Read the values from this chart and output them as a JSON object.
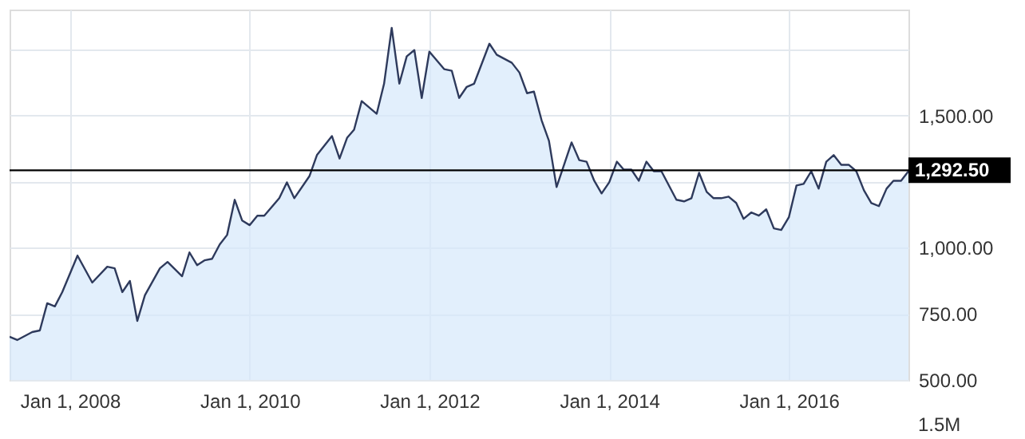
{
  "chart_data": {
    "type": "area",
    "x": [
      "2007-05",
      "2007-06",
      "2007-08",
      "2007-09",
      "2007-10",
      "2007-11",
      "2007-12",
      "2008-02",
      "2008-04",
      "2008-06",
      "2008-07",
      "2008-08",
      "2008-09",
      "2008-10",
      "2008-11",
      "2009-01",
      "2009-02",
      "2009-04",
      "2009-05",
      "2009-06",
      "2009-07",
      "2009-08",
      "2009-09",
      "2009-10",
      "2009-11",
      "2009-12",
      "2010-01",
      "2010-02",
      "2010-03",
      "2010-05",
      "2010-06",
      "2010-07",
      "2010-09",
      "2010-10",
      "2010-12",
      "2011-01",
      "2011-02",
      "2011-03",
      "2011-04",
      "2011-06",
      "2011-07",
      "2011-08",
      "2011-09",
      "2011-10",
      "2011-11",
      "2011-12",
      "2012-01",
      "2012-03",
      "2012-04",
      "2012-05",
      "2012-06",
      "2012-07",
      "2012-09",
      "2012-10",
      "2012-12",
      "2013-01",
      "2013-02",
      "2013-03",
      "2013-04",
      "2013-05",
      "2013-06",
      "2013-08",
      "2013-09",
      "2013-10",
      "2013-11",
      "2013-12",
      "2014-01",
      "2014-02",
      "2014-03",
      "2014-04",
      "2014-05",
      "2014-06",
      "2014-07",
      "2014-08",
      "2014-10",
      "2014-11",
      "2014-12",
      "2015-01",
      "2015-02",
      "2015-03",
      "2015-04",
      "2015-05",
      "2015-06",
      "2015-07",
      "2015-08",
      "2015-09",
      "2015-10",
      "2015-11",
      "2015-12",
      "2016-01",
      "2016-02",
      "2016-03",
      "2016-04",
      "2016-05",
      "2016-06",
      "2016-07",
      "2016-08",
      "2016-09",
      "2016-10",
      "2016-11",
      "2016-12",
      "2017-01",
      "2017-02",
      "2017-03",
      "2017-04",
      "2017-05"
    ],
    "series": [
      {
        "color": "#d6e8fb",
        "values": [
          663,
          651,
          681,
          687,
          790,
          778,
          832,
          970,
          868,
          928,
          922,
          832,
          874,
          723,
          820,
          922,
          946,
          892,
          982,
          934,
          952,
          958,
          1012,
          1048,
          1181,
          1103,
          1085,
          1121,
          1121,
          1187,
          1247,
          1187,
          1271,
          1350,
          1422,
          1337,
          1416,
          1446,
          1554,
          1506,
          1620,
          1831,
          1620,
          1723,
          1747,
          1566,
          1741,
          1675,
          1669,
          1566,
          1608,
          1620,
          1771,
          1729,
          1699,
          1662,
          1584,
          1590,
          1482,
          1404,
          1229,
          1398,
          1331,
          1325,
          1253,
          1205,
          1247,
          1325,
          1295,
          1295,
          1253,
          1325,
          1289,
          1289,
          1181,
          1175,
          1187,
          1283,
          1211,
          1187,
          1187,
          1193,
          1169,
          1109,
          1133,
          1121,
          1145,
          1073,
          1067,
          1115,
          1235,
          1241,
          1289,
          1223,
          1325,
          1350,
          1313,
          1313,
          1289,
          1217,
          1169,
          1157,
          1223,
          1253,
          1253,
          1289
        ]
      }
    ],
    "xlim": [
      "2007-05",
      "2017-05"
    ],
    "xticks": [
      {
        "value": "2008-01-01",
        "label": "Jan 1, 2008"
      },
      {
        "value": "2010-01-01",
        "label": "Jan 1, 2010"
      },
      {
        "value": "2012-01-01",
        "label": "Jan 1, 2012"
      },
      {
        "value": "2014-01-01",
        "label": "Jan 1, 2014"
      },
      {
        "value": "2016-01-01",
        "label": "Jan 1, 2016"
      }
    ],
    "ylim": [
      500,
      1900
    ],
    "yticks": [
      {
        "value": 500,
        "label": "500.00"
      },
      {
        "value": 750,
        "label": "750.00"
      },
      {
        "value": 1000,
        "label": "1,000.00"
      },
      {
        "value": 1250,
        "label": null
      },
      {
        "value": 1500,
        "label": "1,500.00"
      },
      {
        "value": 1750,
        "label": null
      }
    ],
    "ref_lines": [
      {
        "axis": "y",
        "value": 1292.5,
        "label": "1,292.50",
        "color": "#000000"
      }
    ],
    "annotations": [
      "1.5M"
    ],
    "grid": true
  }
}
